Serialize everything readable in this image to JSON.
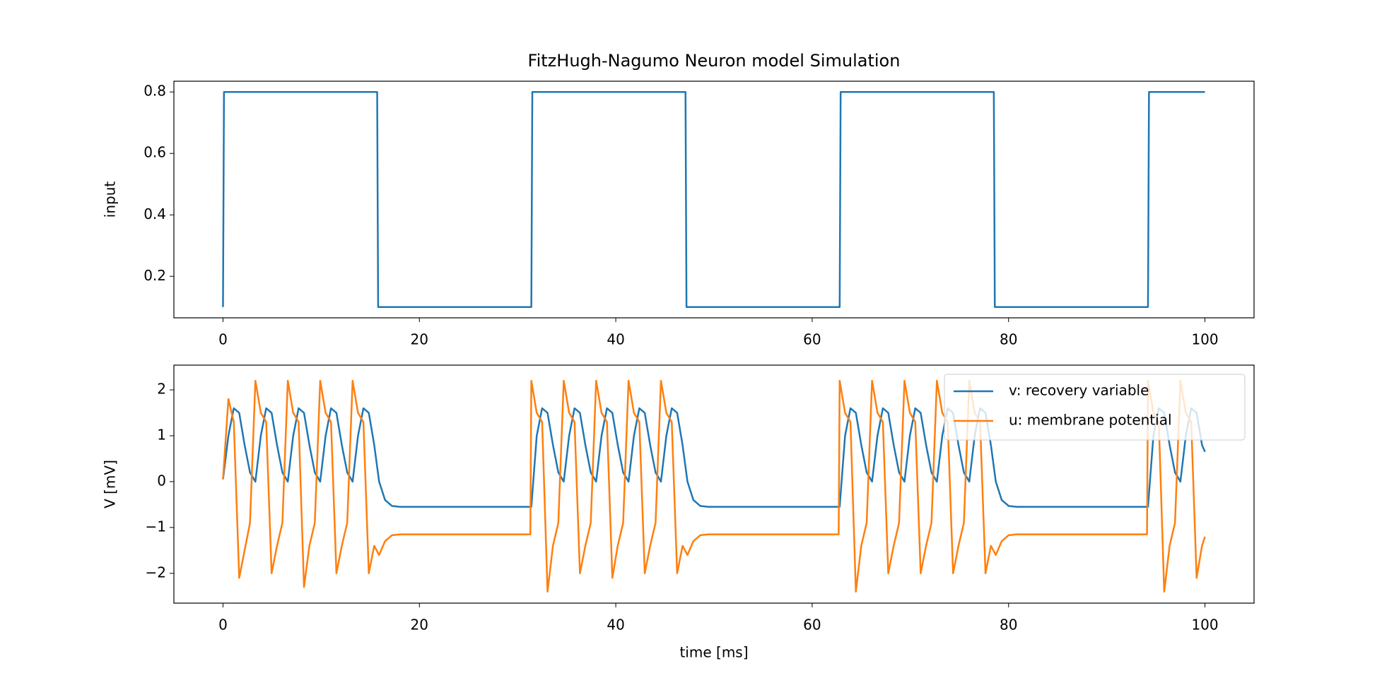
{
  "chart_data": [
    {
      "type": "line",
      "title": "FitzHugh-Nagumo Neuron model Simulation",
      "y_label": "input",
      "x": [
        0,
        0.1,
        15.7,
        15.8,
        31.4,
        31.5,
        47.1,
        47.2,
        62.8,
        62.9,
        78.5,
        78.6,
        94.2,
        94.3,
        100
      ],
      "values": [
        0.1,
        0.8,
        0.8,
        0.1,
        0.1,
        0.8,
        0.8,
        0.1,
        0.1,
        0.8,
        0.8,
        0.1,
        0.1,
        0.8,
        0.8
      ],
      "color": "#1f77b4",
      "xlim": [
        -5,
        105
      ],
      "xticks": [
        0,
        20,
        40,
        60,
        80,
        100
      ],
      "ylim": [
        0.065,
        0.835
      ],
      "yticks": [
        0.2,
        0.4,
        0.6,
        0.8
      ]
    },
    {
      "type": "line",
      "x_label": "time [ms]",
      "y_label": "V [mV]",
      "legend": "upper right",
      "x": [
        0,
        0.55,
        1.1,
        1.65,
        2.2,
        2.75,
        3.3,
        3.85,
        4.4,
        4.95,
        5.5,
        6.05,
        6.6,
        7.15,
        7.7,
        8.25,
        8.8,
        9.35,
        9.9,
        10.45,
        11,
        11.55,
        12.1,
        12.65,
        13.2,
        13.75,
        14.3,
        14.85,
        15.4,
        15.9,
        16.5,
        17.2,
        18,
        31.3,
        31.4,
        31.95,
        32.5,
        33.05,
        33.6,
        34.15,
        34.7,
        35.25,
        35.8,
        36.35,
        36.9,
        37.45,
        38,
        38.55,
        39.1,
        39.65,
        40.2,
        40.75,
        41.3,
        41.85,
        42.4,
        42.95,
        43.5,
        44.05,
        44.6,
        45.15,
        45.7,
        46.25,
        46.8,
        47.3,
        47.9,
        48.6,
        49.4,
        62.7,
        62.8,
        63.35,
        63.9,
        64.45,
        65,
        65.55,
        66.1,
        66.65,
        67.2,
        67.75,
        68.3,
        68.85,
        69.4,
        69.95,
        70.5,
        71.05,
        71.6,
        72.15,
        72.7,
        73.25,
        73.8,
        74.35,
        74.9,
        75.45,
        76,
        76.55,
        77.1,
        77.65,
        78.2,
        78.7,
        79.3,
        80,
        80.8,
        94.1,
        94.2,
        94.75,
        95.3,
        95.85,
        96.4,
        96.95,
        97.5,
        98.05,
        98.6,
        99.15,
        99.7,
        100
      ],
      "series": [
        {
          "name": "v: recovery variable",
          "color": "#1f77b4",
          "values": [
            0.05,
            1.0,
            1.6,
            1.5,
            0.8,
            0.2,
            0.0,
            1.0,
            1.6,
            1.5,
            0.8,
            0.2,
            0.0,
            1.0,
            1.6,
            1.5,
            0.8,
            0.2,
            0.0,
            1.0,
            1.6,
            1.5,
            0.8,
            0.2,
            0.0,
            1.0,
            1.6,
            1.5,
            0.8,
            0.0,
            -0.4,
            -0.53,
            -0.55,
            -0.55,
            -0.55,
            1.0,
            1.6,
            1.5,
            0.8,
            0.2,
            0.0,
            1.0,
            1.6,
            1.5,
            0.8,
            0.2,
            0.0,
            1.0,
            1.6,
            1.5,
            0.8,
            0.2,
            0.0,
            1.0,
            1.6,
            1.5,
            0.8,
            0.2,
            0.0,
            1.0,
            1.6,
            1.5,
            0.8,
            0.0,
            -0.4,
            -0.53,
            -0.55,
            -0.55,
            -0.55,
            1.0,
            1.6,
            1.5,
            0.8,
            0.2,
            0.0,
            1.0,
            1.6,
            1.5,
            0.8,
            0.2,
            0.0,
            1.0,
            1.6,
            1.5,
            0.8,
            0.2,
            0.0,
            1.0,
            1.6,
            1.5,
            0.8,
            0.2,
            0.0,
            1.0,
            1.6,
            1.5,
            0.8,
            0.0,
            -0.4,
            -0.53,
            -0.55,
            -0.55,
            -0.55,
            1.0,
            1.6,
            1.5,
            0.8,
            0.2,
            0.0,
            1.0,
            1.6,
            1.5,
            0.8,
            0.65
          ]
        },
        {
          "name": "u: membrane potential",
          "color": "#ff7f0e",
          "values": [
            0.05,
            1.8,
            1.3,
            -2.1,
            -1.5,
            -0.9,
            2.2,
            1.5,
            1.3,
            -2.0,
            -1.4,
            -0.9,
            2.2,
            1.5,
            1.3,
            -2.3,
            -1.4,
            -0.9,
            2.2,
            1.5,
            1.3,
            -2.0,
            -1.4,
            -0.9,
            2.2,
            1.5,
            1.3,
            -2.0,
            -1.4,
            -1.6,
            -1.3,
            -1.17,
            -1.15,
            -1.15,
            2.2,
            1.5,
            1.3,
            -2.4,
            -1.4,
            -0.9,
            2.2,
            1.5,
            1.3,
            -2.0,
            -1.4,
            -0.9,
            2.2,
            1.5,
            1.3,
            -2.1,
            -1.4,
            -0.9,
            2.2,
            1.5,
            1.3,
            -2.0,
            -1.4,
            -0.9,
            2.2,
            1.5,
            1.3,
            -2.0,
            -1.4,
            -1.6,
            -1.3,
            -1.17,
            -1.15,
            -1.15,
            2.2,
            1.5,
            1.3,
            -2.4,
            -1.4,
            -0.9,
            2.2,
            1.5,
            1.3,
            -2.0,
            -1.4,
            -0.9,
            2.2,
            1.5,
            1.3,
            -2.0,
            -1.4,
            -0.9,
            2.2,
            1.5,
            1.3,
            -2.0,
            -1.4,
            -0.9,
            2.2,
            1.5,
            1.3,
            -2.0,
            -1.4,
            -1.6,
            -1.3,
            -1.17,
            -1.15,
            -1.15,
            2.2,
            1.5,
            1.3,
            -2.4,
            -1.4,
            -0.9,
            2.2,
            1.5,
            1.3,
            -2.1,
            -1.4,
            -1.2
          ]
        }
      ],
      "xlim": [
        -5,
        105
      ],
      "xticks": [
        0,
        20,
        40,
        60,
        80,
        100
      ],
      "ylim": [
        -2.65,
        2.54
      ],
      "yticks": [
        {
          "value": -2,
          "label": "−2"
        },
        {
          "value": -1,
          "label": "−1"
        },
        0,
        1,
        2
      ]
    }
  ]
}
